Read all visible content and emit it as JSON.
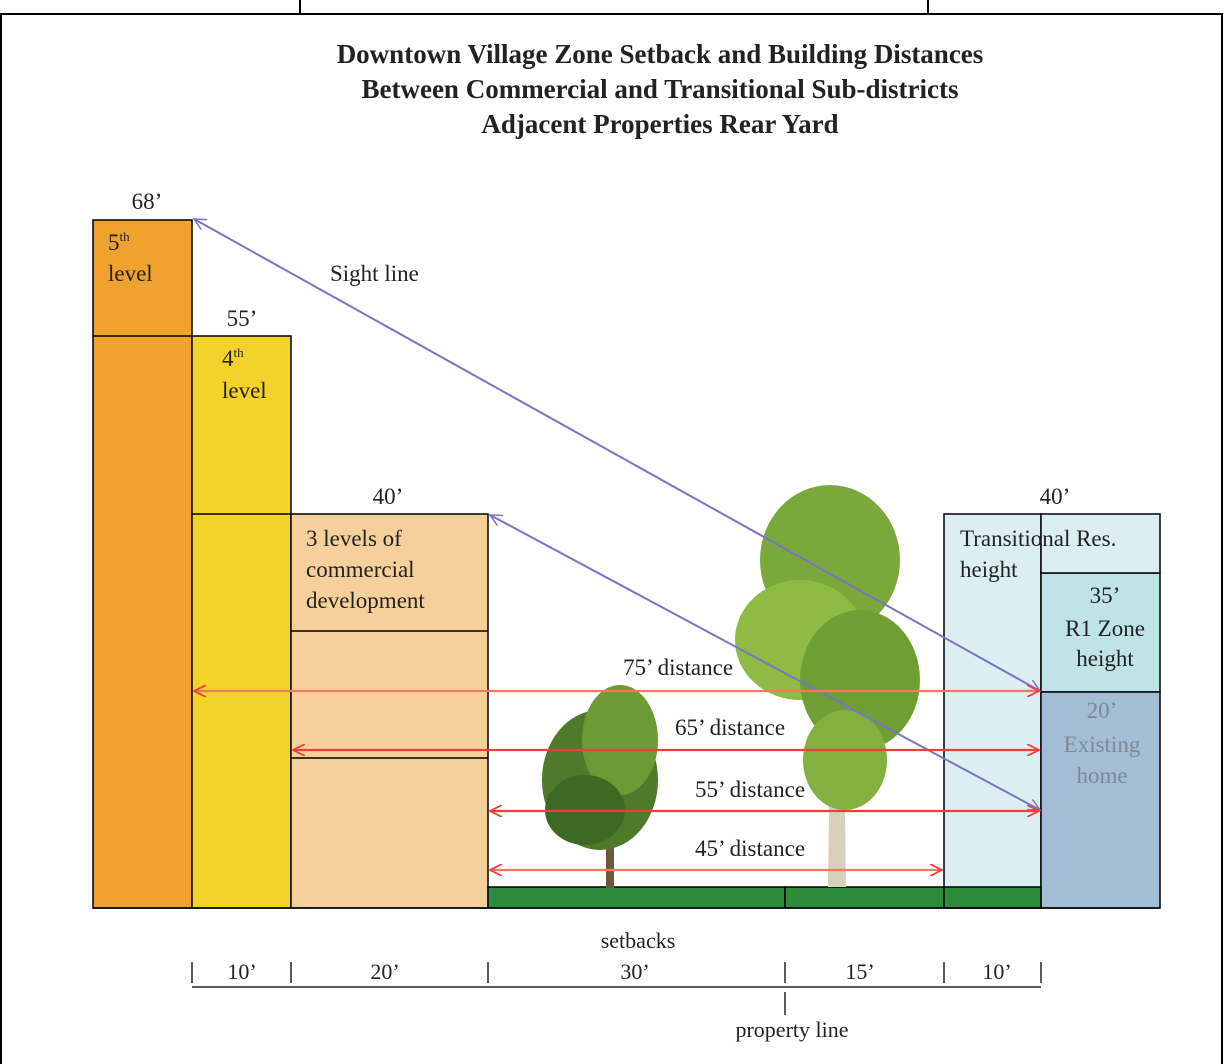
{
  "title": [
    "Downtown Village Zone Setback and Building Distances",
    "Between Commercial and Transitional Sub-districts",
    "Adjacent Properties Rear Yard"
  ],
  "buildings": [
    {
      "height": "68’",
      "number": "5",
      "suffix": "th",
      "label": "level"
    },
    {
      "height": "55’",
      "number": "4",
      "suffix": "th",
      "label": "level"
    },
    {
      "height": "40’",
      "label": [
        "3 levels of",
        "commercial",
        "development"
      ]
    },
    {
      "height": "40’",
      "label": [
        "Transitional Res.",
        "height"
      ]
    },
    {
      "height": "35’",
      "label": [
        "R1 Zone",
        "height"
      ]
    },
    {
      "height": "20’",
      "label": [
        "Existing",
        "home"
      ]
    }
  ],
  "sight_line": "Sight line",
  "distances": [
    "75’ distance",
    "65’ distance",
    "55’ distance",
    "45’ distance"
  ],
  "setbacks": {
    "label": "setbacks",
    "segments": [
      "10’",
      "20’",
      "30’",
      "15’",
      "10’"
    ]
  },
  "property_line": "property line"
}
